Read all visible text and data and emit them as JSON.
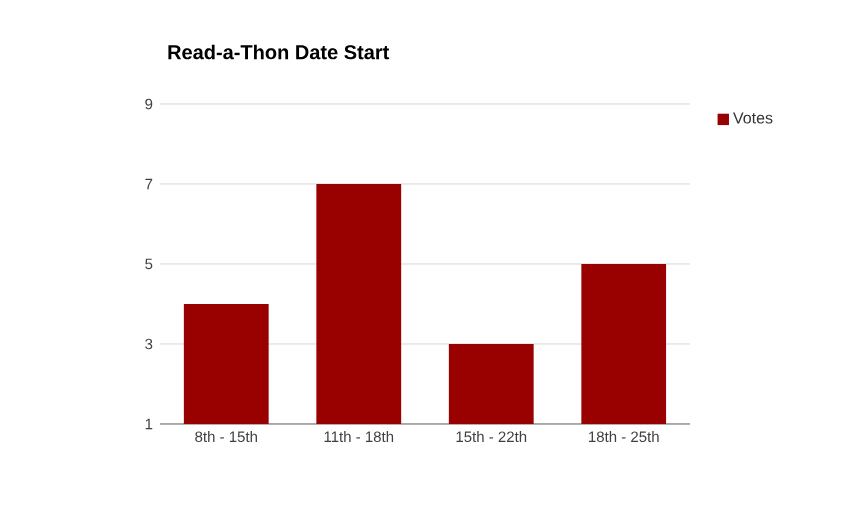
{
  "chart_data": {
    "type": "bar",
    "title": "Read-a-Thon Date Start",
    "categories": [
      "8th - 15th",
      "11th - 18th",
      "15th - 22th",
      "18th - 25th"
    ],
    "series": [
      {
        "name": "Votes",
        "color": "#990000",
        "values": [
          4,
          7,
          3,
          5
        ]
      }
    ],
    "ylim": [
      1,
      9
    ],
    "yticks": [
      1,
      3,
      5,
      7,
      9
    ],
    "grid": "y",
    "legend": "top right"
  }
}
